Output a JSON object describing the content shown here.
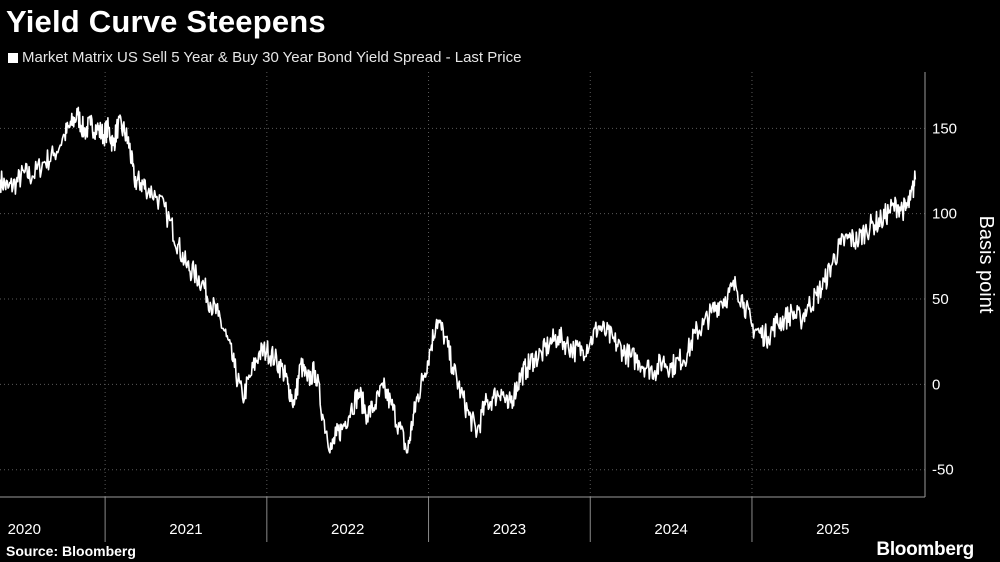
{
  "header": {
    "title": "Yield Curve Steepens"
  },
  "footer": {
    "source": "Source: Bloomberg",
    "brand": "Bloomberg"
  },
  "colors": {
    "background": "#000000",
    "line": "#ffffff",
    "grid": "#5a5a5a"
  },
  "chart_data": {
    "type": "line",
    "title": "Yield Curve Steepens",
    "xlabel": "",
    "ylabel": "Basis point",
    "ylim": [
      -66,
      183
    ],
    "xlim": [
      2020.0,
      2025.72
    ],
    "yticks": [
      -50,
      0,
      50,
      100,
      150
    ],
    "x_tick_labels": [
      "2020",
      "2021",
      "2022",
      "2023",
      "2024",
      "2025"
    ],
    "x_tick_positions": [
      2020.15,
      2021.15,
      2022.15,
      2023.15,
      2024.15,
      2025.15
    ],
    "x_boundaries": [
      2020.65,
      2021.65,
      2022.65,
      2023.65,
      2024.65
    ],
    "grid": true,
    "y_axis_side": "right",
    "legend_position": "top-left",
    "series": [
      {
        "name": "Market Matrix US Sell 5 Year & Buy 30 Year Bond Yield Spread - Last Price",
        "x": [
          2020.0,
          2020.05,
          2020.1,
          2020.15,
          2020.2,
          2020.27,
          2020.33,
          2020.4,
          2020.44,
          2020.48,
          2020.52,
          2020.56,
          2020.6,
          2020.64,
          2020.67,
          2020.7,
          2020.73,
          2020.77,
          2020.8,
          2020.83,
          2020.87,
          2020.9,
          2020.97,
          2021.05,
          2021.1,
          2021.15,
          2021.2,
          2021.25,
          2021.3,
          2021.35,
          2021.4,
          2021.45,
          2021.5,
          2021.55,
          2021.6,
          2021.65,
          2021.7,
          2021.75,
          2021.78,
          2021.82,
          2021.86,
          2021.9,
          2021.95,
          2022.0,
          2022.05,
          2022.08,
          2022.12,
          2022.17,
          2022.22,
          2022.27,
          2022.32,
          2022.37,
          2022.42,
          2022.47,
          2022.52,
          2022.55,
          2022.58,
          2022.62,
          2022.66,
          2022.7,
          2022.75,
          2022.8,
          2022.85,
          2022.9,
          2022.95,
          2023.0,
          2023.05,
          2023.1,
          2023.14,
          2023.18,
          2023.22,
          2023.26,
          2023.3,
          2023.35,
          2023.4,
          2023.45,
          2023.5,
          2023.55,
          2023.6,
          2023.65,
          2023.7,
          2023.75,
          2023.8,
          2023.85,
          2023.9,
          2023.95,
          2024.0,
          2024.05,
          2024.1,
          2024.15,
          2024.2,
          2024.25,
          2024.3,
          2024.35,
          2024.4,
          2024.45,
          2024.5,
          2024.55,
          2024.6,
          2024.65,
          2024.7,
          2024.75,
          2024.8,
          2024.85,
          2024.9,
          2024.95,
          2025.0,
          2025.05,
          2025.1,
          2025.15,
          2025.2,
          2025.25,
          2025.3,
          2025.35,
          2025.4,
          2025.45,
          2025.5,
          2025.55,
          2025.6,
          2025.63,
          2025.66
        ],
        "values": [
          120,
          115,
          118,
          124,
          122,
          130,
          134,
          146,
          152,
          158,
          148,
          152,
          150,
          146,
          150,
          140,
          152,
          148,
          140,
          120,
          118,
          116,
          110,
          96,
          82,
          70,
          65,
          60,
          48,
          40,
          28,
          10,
          -8,
          5,
          18,
          20,
          15,
          8,
          0,
          -12,
          12,
          2,
          8,
          -20,
          -38,
          -30,
          -25,
          -14,
          -5,
          -18,
          -12,
          -2,
          -12,
          -25,
          -40,
          -22,
          -8,
          5,
          20,
          38,
          28,
          10,
          -5,
          -18,
          -28,
          -12,
          -8,
          -3,
          -14,
          -5,
          5,
          10,
          15,
          18,
          24,
          28,
          24,
          20,
          20,
          25,
          34,
          30,
          25,
          20,
          16,
          14,
          10,
          8,
          14,
          10,
          14,
          18,
          30,
          35,
          42,
          48,
          52,
          58,
          48,
          34,
          30,
          28,
          36,
          38,
          42,
          38,
          46,
          52,
          60,
          72,
          82,
          86,
          84,
          90,
          94,
          96,
          102,
          105,
          102,
          108,
          120
        ]
      }
    ]
  }
}
